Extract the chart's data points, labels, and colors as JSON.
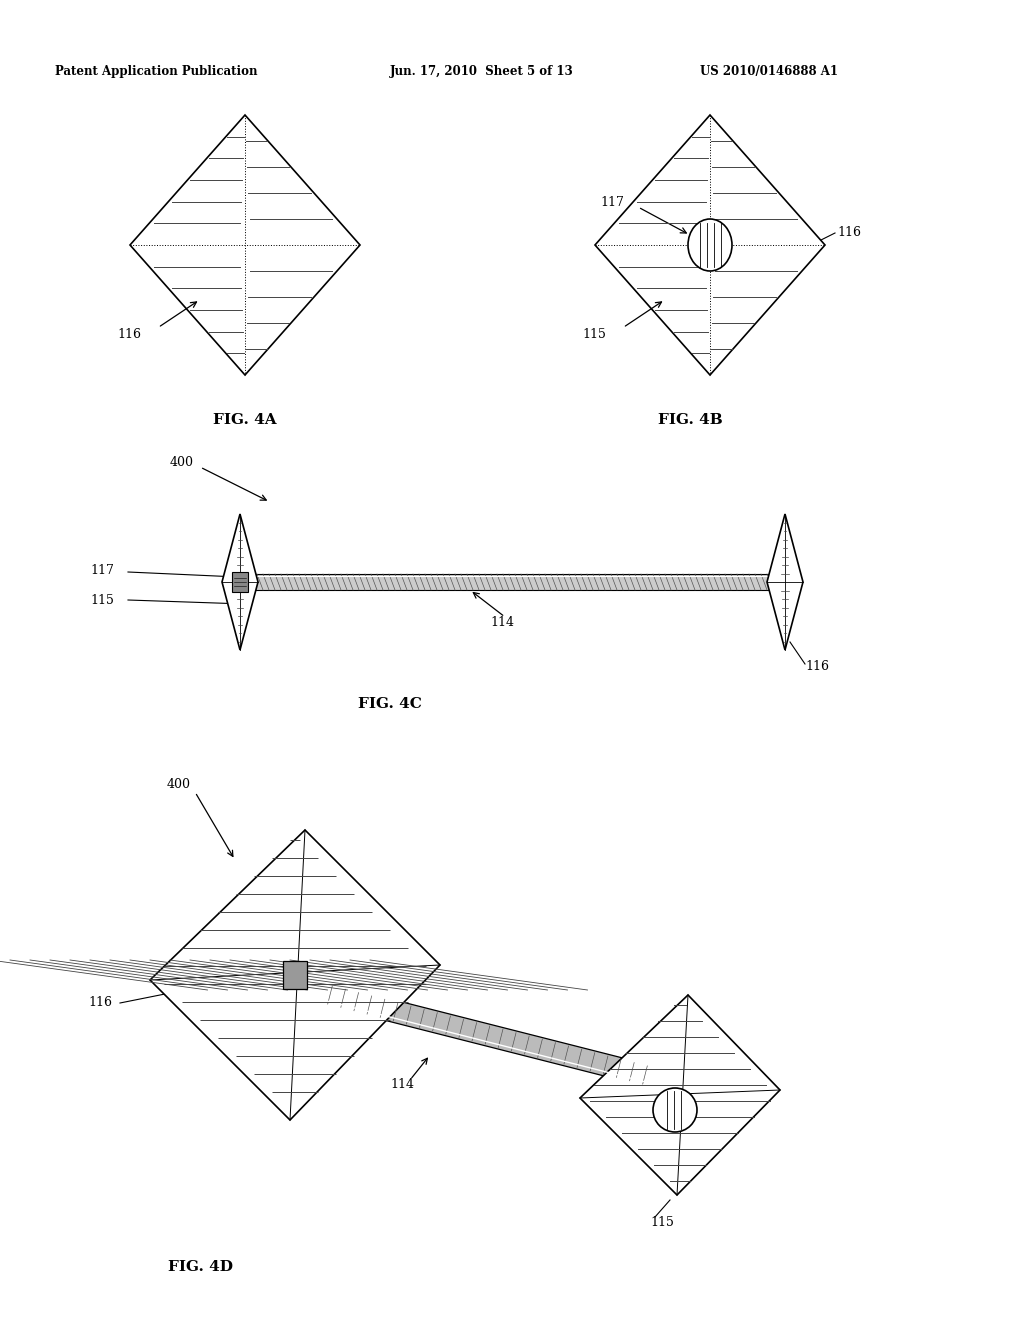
{
  "title_left": "Patent Application Publication",
  "title_mid": "Jun. 17, 2010  Sheet 5 of 13",
  "title_right": "US 2010/0146888 A1",
  "fig4a_label": "FIG. 4A",
  "fig4b_label": "FIG. 4B",
  "fig4c_label": "FIG. 4C",
  "fig4d_label": "FIG. 4D",
  "background_color": "#ffffff",
  "line_color": "#000000",
  "hatch_color": "#444444",
  "rod_color": "#aaaaaa",
  "label_116_4a": "116",
  "label_117_4b": "117",
  "label_115_4b": "115",
  "label_116_4b": "116",
  "label_400_4c": "400",
  "label_117_4c": "117",
  "label_115_4c": "115",
  "label_114_4c": "114",
  "label_116_4c": "116",
  "label_400_4d": "400",
  "label_116_4d": "116",
  "label_114_4d": "114",
  "label_115_4d": "115"
}
